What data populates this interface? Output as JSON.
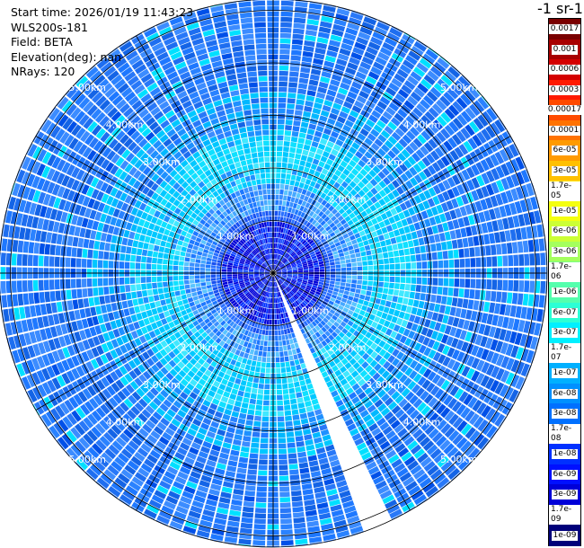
{
  "info": {
    "start_time": "Start time: 2026/01/19 11:43:23",
    "instrument": "WLS200s-181",
    "field": "Field: BETA",
    "elevation": "Elevation(deg): nan",
    "nrays": "NRays: 120"
  },
  "colorbar": {
    "title": "-1 sr-1",
    "labels": [
      "0.0017",
      "0.001",
      "0.0006",
      "0.0003",
      "0.00017",
      "0.0001",
      "6e-05",
      "3e-05",
      "1.7e-05",
      "1e-05",
      "6e-06",
      "3e-06",
      "1.7e-06",
      "1e-06",
      "6e-07",
      "3e-07",
      "1.7e-07",
      "1e-07",
      "6e-08",
      "3e-08",
      "1.7e-08",
      "1e-08",
      "6e-09",
      "3e-09",
      "1.7e-09",
      "1e-09"
    ],
    "colors": [
      "#7a0000",
      "#a80000",
      "#d40000",
      "#ff1a00",
      "#ff4a00",
      "#ff7200",
      "#ff9a00",
      "#ffc000",
      "#ffe400",
      "#f4ff10",
      "#ccff35",
      "#a4ff5d",
      "#7cff85",
      "#54ffad",
      "#2cffd5",
      "#00f0ff",
      "#00d0ff",
      "#00b0ff",
      "#0090ff",
      "#0070ff",
      "#0050ff",
      "#0030ff",
      "#0010ff",
      "#0000d8",
      "#0000a8",
      "#00007a"
    ]
  },
  "range_rings": {
    "labels": [
      "1.00km",
      "2.00km",
      "3.00km",
      "4.00km",
      "5.00km"
    ],
    "values_km": [
      1,
      2,
      3,
      4,
      5
    ]
  }
}
